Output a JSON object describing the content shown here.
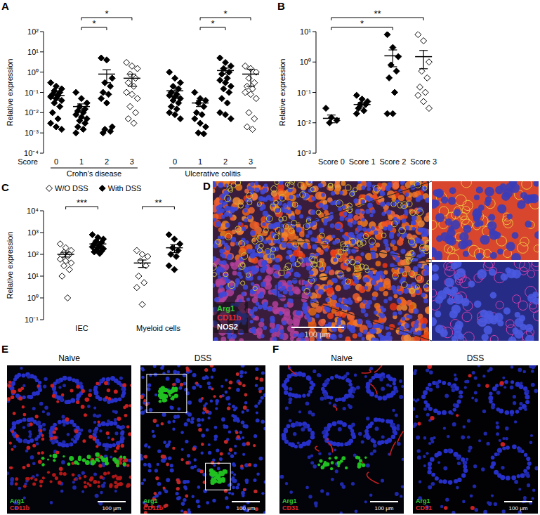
{
  "chart_data": [
    {
      "type": "dot",
      "title": "A",
      "ylabel": "Relative expression",
      "xlabel": "Score",
      "log": "y",
      "ylim": [
        0.0001,
        100
      ],
      "yticks": [
        {
          "value": 100,
          "label": "10²"
        },
        {
          "value": 10,
          "label": "10¹"
        },
        {
          "value": 1,
          "label": "10⁰"
        },
        {
          "value": 0.1,
          "label": "10⁻¹"
        },
        {
          "value": 0.01,
          "label": "10⁻²"
        },
        {
          "value": 0.001,
          "label": "10⁻³"
        },
        {
          "value": 0.0001,
          "label": "10⁻⁴"
        }
      ],
      "categories": [
        "0",
        "1",
        "2",
        "3",
        "0",
        "1",
        "2",
        "3"
      ],
      "groups": [
        {
          "label": "Crohn's disease",
          "categories": [
            0,
            3
          ]
        },
        {
          "label": "Ulcerative colitis",
          "categories": [
            4,
            7
          ]
        }
      ],
      "series": [
        {
          "marker": "diamond",
          "color": "#000000",
          "values": [
            [
              0.3,
              0.2,
              0.15,
              0.12,
              0.1,
              0.08,
              0.07,
              0.06,
              0.05,
              0.04,
              0.03,
              0.02,
              0.01,
              0.005,
              0.003,
              0.002,
              0.0015
            ],
            [
              0.1,
              0.05,
              0.03,
              0.02,
              0.015,
              0.012,
              0.01,
              0.008,
              0.006,
              0.005,
              0.004,
              0.003,
              0.002,
              0.0015,
              0.001
            ],
            [
              5,
              4,
              0.5,
              0.3,
              0.2,
              0.1,
              0.08,
              0.05,
              0.03,
              0.002,
              0.0015,
              0.0012,
              0.001
            ],
            null,
            [
              1,
              0.5,
              0.3,
              0.2,
              0.15,
              0.1,
              0.08,
              0.07,
              0.06,
              0.05,
              0.04,
              0.03,
              0.02,
              0.015,
              0.01,
              0.008,
              0.005
            ],
            [
              0.1,
              0.05,
              0.04,
              0.03,
              0.02,
              0.01,
              0.008,
              0.005,
              0.003,
              0.002,
              0.001,
              0.0009
            ],
            [
              5,
              3,
              2,
              1.5,
              1,
              0.8,
              0.5,
              0.4,
              0.3,
              0.2,
              0.15,
              0.1,
              0.05,
              0.03,
              0.01,
              0.008,
              0.005
            ],
            null
          ],
          "mean": [
            0.07,
            0.02,
            0.8,
            null,
            0.12,
            0.03,
            1.2,
            null
          ],
          "error": [
            0.02,
            0.007,
            0.5,
            null,
            0.06,
            0.01,
            0.4,
            null
          ]
        },
        {
          "marker": "diamond-open",
          "color": "#000000",
          "values": [
            null,
            null,
            null,
            [
              3,
              2,
              1.5,
              0.8,
              0.5,
              0.3,
              0.2,
              0.1,
              0.08,
              0.05,
              0.02,
              0.01,
              0.005,
              0.003
            ],
            null,
            null,
            null,
            [
              2,
              1.5,
              1,
              0.5,
              0.3,
              0.2,
              0.15,
              0.1,
              0.08,
              0.05,
              0.01,
              0.005,
              0.002,
              0.0015
            ]
          ],
          "mean": [
            null,
            null,
            null,
            0.5,
            null,
            null,
            null,
            0.8
          ],
          "error": [
            null,
            null,
            null,
            0.3,
            null,
            null,
            null,
            0.6
          ]
        }
      ],
      "annotations": [
        {
          "text": "*",
          "between": [
            1,
            3
          ]
        },
        {
          "text": "*",
          "between": [
            1,
            2
          ]
        },
        {
          "text": "*",
          "between": [
            5,
            6
          ]
        },
        {
          "text": "*",
          "between": [
            5,
            7
          ]
        }
      ]
    },
    {
      "type": "dot",
      "title": "B",
      "ylabel": "Relative expression",
      "log": "y",
      "ylim": [
        0.001,
        10
      ],
      "yticks": [
        {
          "value": 10,
          "label": "10¹"
        },
        {
          "value": 1,
          "label": "10⁰"
        },
        {
          "value": 0.1,
          "label": "10⁻¹"
        },
        {
          "value": 0.01,
          "label": "10⁻²"
        },
        {
          "value": 0.001,
          "label": "10⁻³"
        }
      ],
      "categories": [
        "Score 0",
        "Score 1",
        "Score 2",
        "Score 3"
      ],
      "series": [
        {
          "marker": "diamond",
          "color": "#000000",
          "values": [
            [
              0.03,
              0.015,
              0.012,
              0.01
            ],
            [
              0.08,
              0.06,
              0.05,
              0.04,
              0.04,
              0.03,
              0.025,
              0.02
            ],
            [
              8,
              3,
              1.5,
              0.8,
              0.5,
              0.3,
              0.1,
              0.02,
              0.02
            ],
            null
          ],
          "mean": [
            0.014,
            0.04,
            1.6,
            null
          ],
          "error": [
            0.004,
            0.007,
            0.9,
            null
          ]
        },
        {
          "marker": "diamond-open",
          "color": "#000000",
          "values": [
            null,
            null,
            null,
            [
              8,
              5,
              1,
              0.5,
              0.3,
              0.15,
              0.1,
              0.08,
              0.05,
              0.03
            ]
          ],
          "mean": [
            null,
            null,
            null,
            1.5
          ],
          "error": [
            null,
            null,
            null,
            0.9
          ]
        }
      ],
      "annotations": [
        {
          "text": "*",
          "between": [
            0,
            2
          ]
        },
        {
          "text": "**",
          "between": [
            0,
            3
          ]
        }
      ]
    },
    {
      "type": "dot",
      "title": "C",
      "ylabel": "Relative expression",
      "log": "y",
      "ylim": [
        0.1,
        10000
      ],
      "yticks": [
        {
          "value": 10000,
          "label": "10⁴"
        },
        {
          "value": 1000,
          "label": "10³"
        },
        {
          "value": 100,
          "label": "10²"
        },
        {
          "value": 10,
          "label": "10¹"
        },
        {
          "value": 1,
          "label": "10⁰"
        },
        {
          "value": 0.1,
          "label": "10⁻¹"
        }
      ],
      "categories": [
        "IEC",
        "Myeloid cells"
      ],
      "legend": "top-left",
      "series": [
        {
          "name": "W/O DSS",
          "marker": "diamond-open",
          "color": "#000000",
          "values": [
            [
              300,
              200,
              150,
              120,
              100,
              90,
              80,
              60,
              50,
              40,
              30,
              20,
              10,
              1
            ],
            [
              150,
              100,
              80,
              50,
              30,
              10,
              5,
              3,
              0.5
            ]
          ],
          "mean": [
            100,
            40
          ],
          "error": [
            25,
            15
          ]
        },
        {
          "name": "With DSS",
          "marker": "diamond",
          "color": "#000000",
          "values": [
            [
              800,
              600,
              500,
              400,
              350,
              300,
              250,
              220,
              200,
              180,
              150,
              140,
              130,
              110
            ],
            [
              800,
              500,
              300,
              200,
              150,
              100,
              80,
              30,
              20
            ]
          ],
          "mean": [
            300,
            200
          ],
          "error": [
            50,
            80
          ]
        }
      ],
      "annotations": [
        {
          "text": "***",
          "category": 0
        },
        {
          "text": "**",
          "category": 1
        }
      ]
    }
  ],
  "images": [
    {
      "title": "D",
      "labels": [
        {
          "text": "Arg1",
          "color": "#33cc33"
        },
        {
          "text": "CD11b",
          "color": "#e8282b"
        },
        {
          "text": "NOS2",
          "color": "#ffffff"
        }
      ],
      "scale_bar": "100 μm"
    },
    {
      "title": "E",
      "panels": [
        {
          "caption": "Naive",
          "labels": [
            {
              "text": "Arg1",
              "color": "#33cc33"
            },
            {
              "text": "CD11b",
              "color": "#e8282b"
            }
          ],
          "scale_bar": "100 μm"
        },
        {
          "caption": "DSS",
          "labels": [
            {
              "text": "Arg1",
              "color": "#33cc33"
            },
            {
              "text": "CD11b",
              "color": "#e8282b"
            }
          ],
          "scale_bar": "100 μm"
        }
      ]
    },
    {
      "title": "F",
      "panels": [
        {
          "caption": "Naive",
          "labels": [
            {
              "text": "Arg1",
              "color": "#33cc33"
            },
            {
              "text": "CD31",
              "color": "#e8282b"
            }
          ],
          "scale_bar": "100 μm"
        },
        {
          "caption": "DSS",
          "labels": [
            {
              "text": "Arg1",
              "color": "#33cc33"
            },
            {
              "text": "CD31",
              "color": "#e8282b"
            }
          ],
          "scale_bar": "100 μm"
        }
      ]
    }
  ]
}
